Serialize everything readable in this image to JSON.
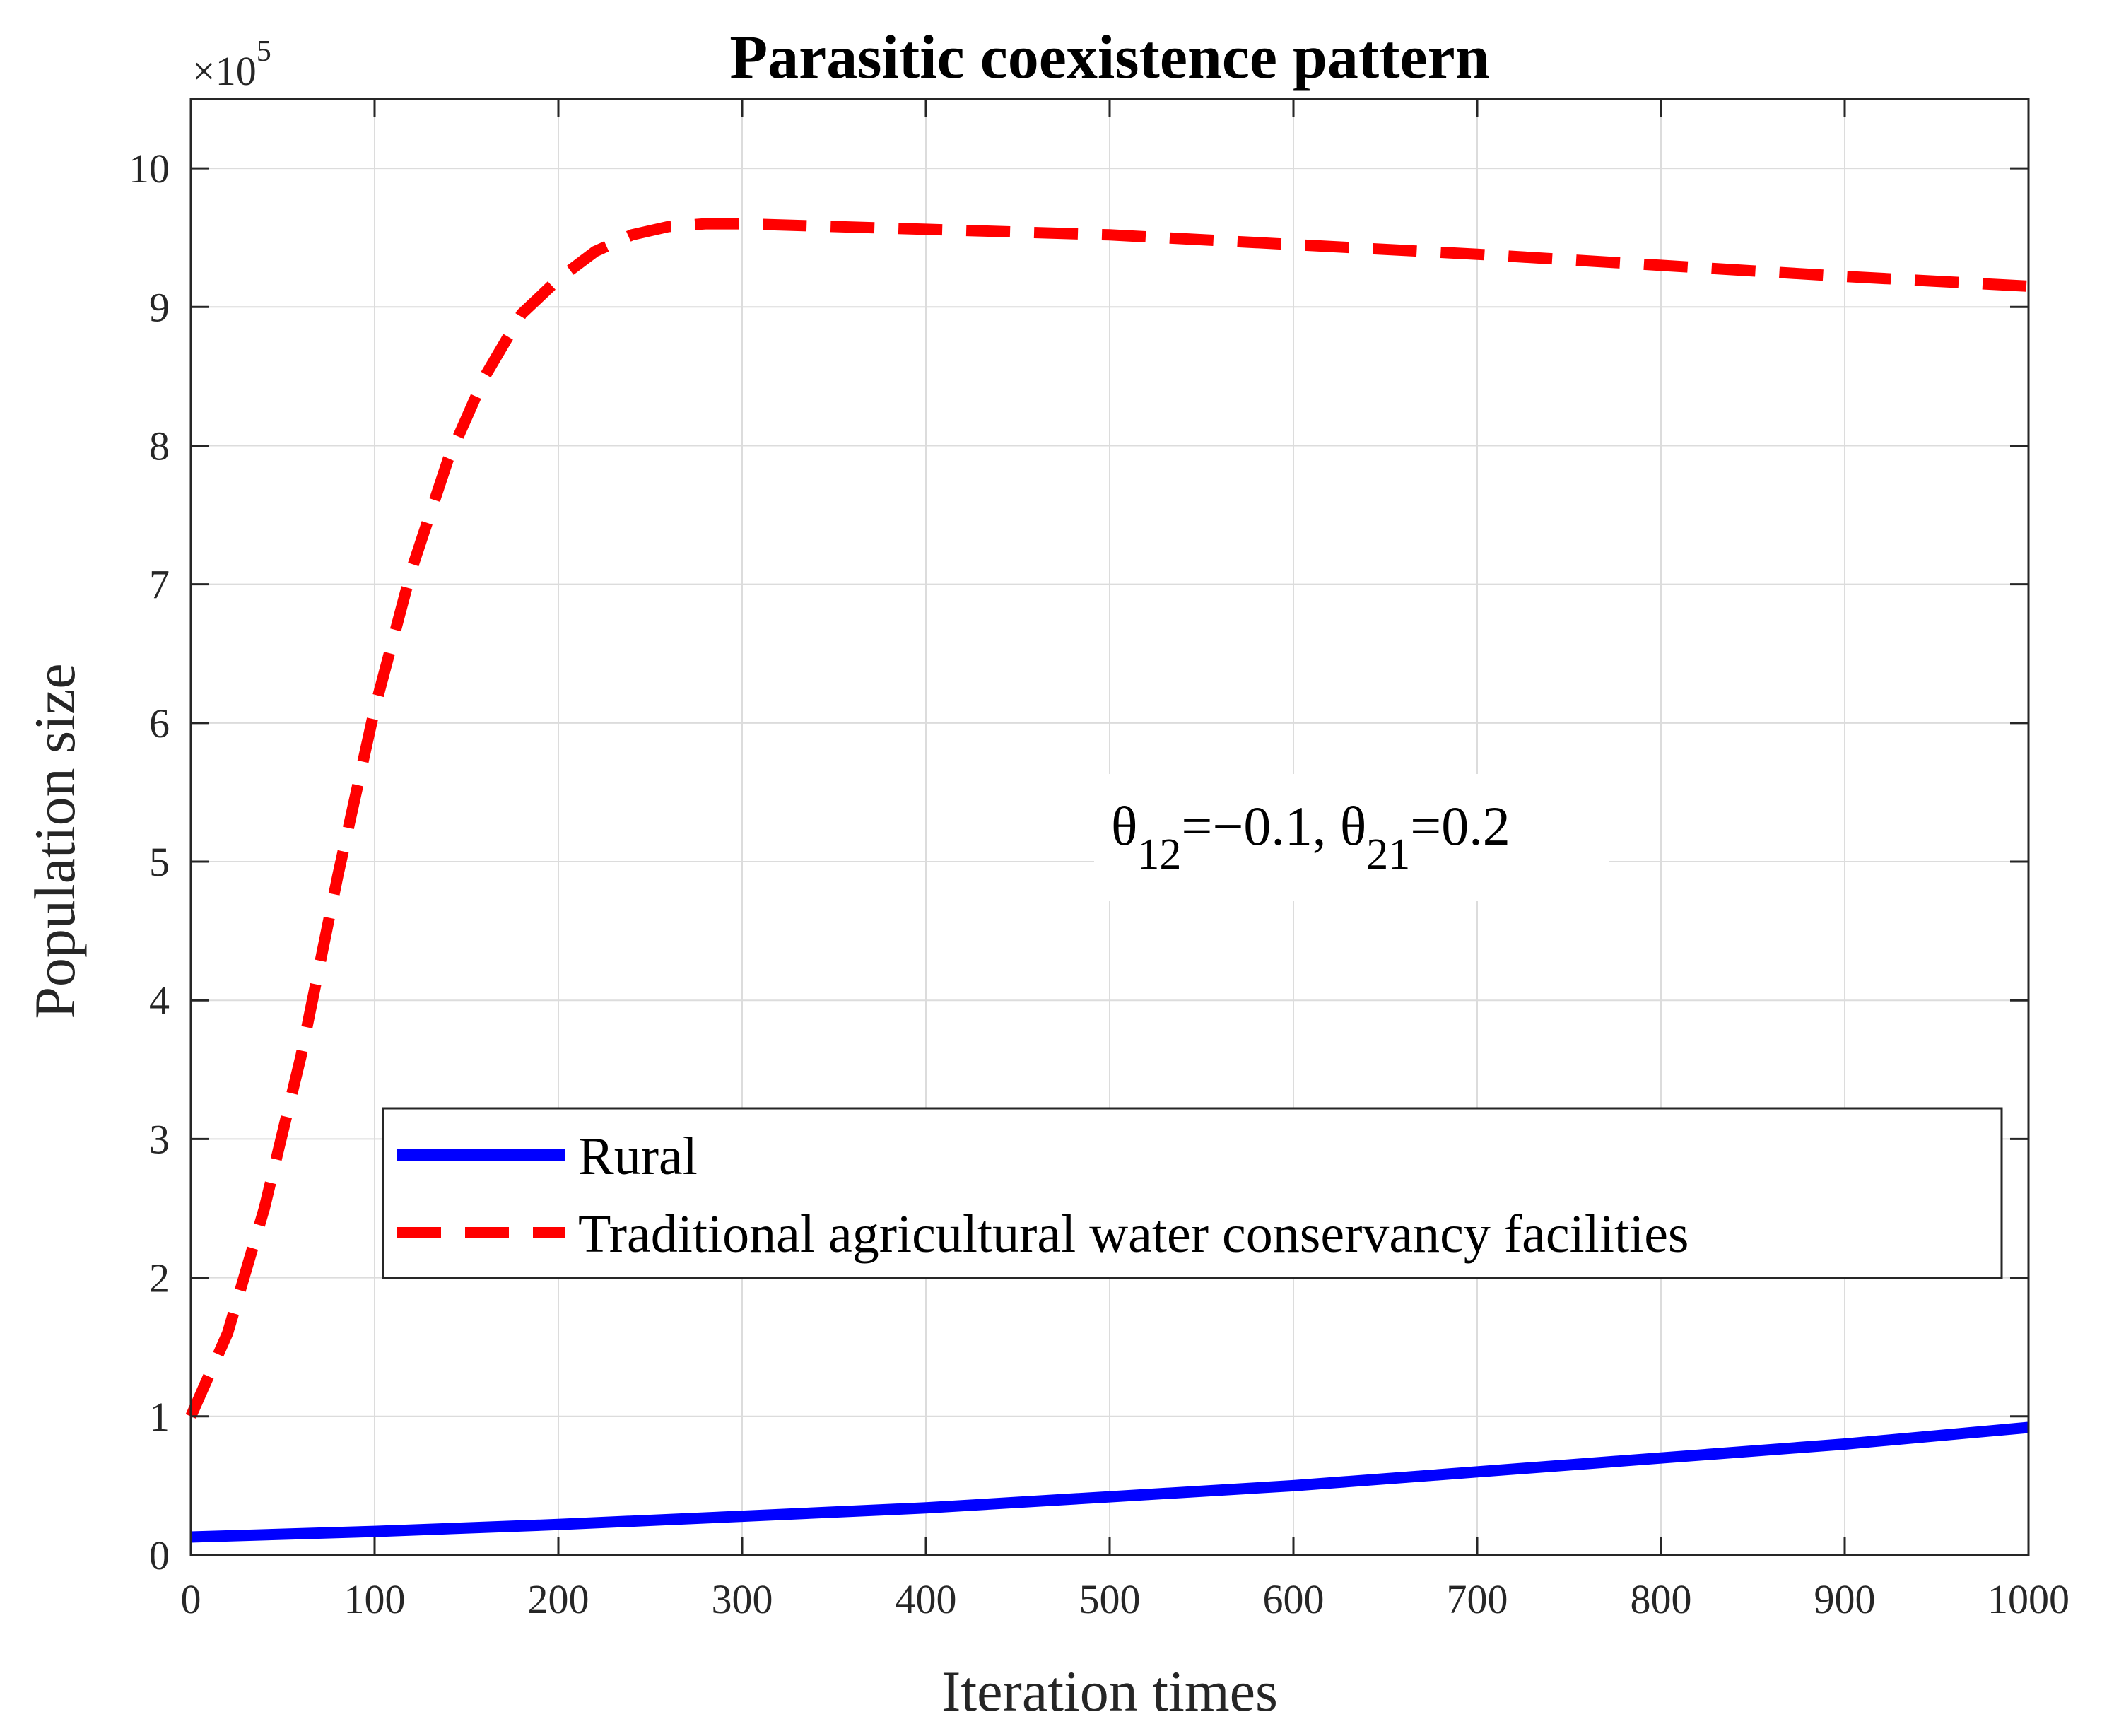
{
  "chart_data": {
    "type": "line",
    "title": "Parasitic coexistence pattern",
    "xlabel": "Iteration times",
    "ylabel": "Population size",
    "xlim": [
      0,
      1000
    ],
    "ylim": [
      0,
      10.5
    ],
    "y_exponent_base": "×10",
    "y_exponent_power": "5",
    "grid": true,
    "x_ticks": [
      0,
      100,
      200,
      300,
      400,
      500,
      600,
      700,
      800,
      900,
      1000
    ],
    "x_tick_labels": [
      "0",
      "100",
      "200",
      "300",
      "400",
      "500",
      "600",
      "700",
      "800",
      "900",
      "1000"
    ],
    "y_ticks": [
      0,
      1,
      2,
      3,
      4,
      5,
      6,
      7,
      8,
      9,
      10
    ],
    "y_tick_labels": [
      "0",
      "1",
      "2",
      "3",
      "4",
      "5",
      "6",
      "7",
      "8",
      "9",
      "10"
    ],
    "annotation": {
      "theta1": "θ",
      "sub1": "12",
      "eq1": "=−0.1, ",
      "theta2": "θ",
      "sub2": "21",
      "eq2": "=0.2",
      "at": [
        500,
        5.1
      ]
    },
    "legend_position": "lower-center",
    "series": [
      {
        "name": "Rural",
        "color": "#0000ff",
        "style": "solid",
        "x": [
          0,
          100,
          200,
          300,
          400,
          500,
          600,
          700,
          800,
          900,
          1000
        ],
        "y": [
          0.13,
          0.17,
          0.22,
          0.28,
          0.34,
          0.42,
          0.5,
          0.6,
          0.7,
          0.8,
          0.92
        ]
      },
      {
        "name": "Traditional agricultural water conservancy facilities",
        "color": "#ff0000",
        "style": "dashed",
        "x": [
          0,
          20,
          40,
          60,
          80,
          100,
          120,
          140,
          160,
          180,
          200,
          220,
          240,
          260,
          280,
          300,
          350,
          400,
          450,
          500,
          600,
          700,
          800,
          900,
          1000
        ],
        "y": [
          1.0,
          1.6,
          2.5,
          3.6,
          4.9,
          6.1,
          7.1,
          7.9,
          8.5,
          8.95,
          9.2,
          9.4,
          9.52,
          9.58,
          9.6,
          9.6,
          9.58,
          9.56,
          9.54,
          9.52,
          9.45,
          9.38,
          9.3,
          9.22,
          9.15
        ]
      }
    ]
  }
}
